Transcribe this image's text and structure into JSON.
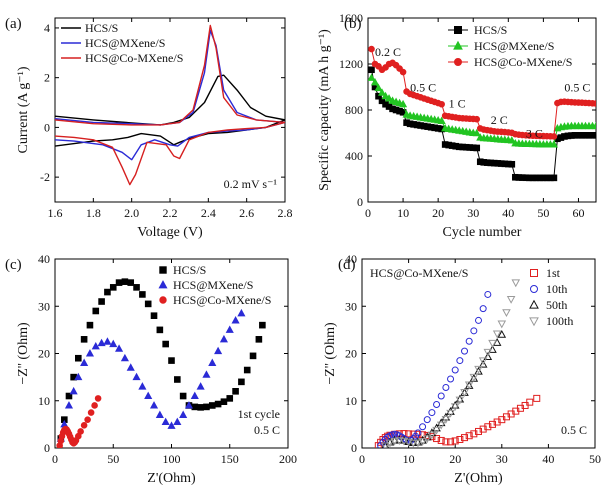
{
  "chart_data": [
    {
      "panel": "(a)",
      "type": "line",
      "xlabel": "Voltage (V)",
      "ylabel": "Current (A g⁻¹)",
      "xlim": [
        1.6,
        2.8
      ],
      "ylim": [
        -3,
        4.4
      ],
      "xticks": [
        "1.6",
        "1.8",
        "2.0",
        "2.2",
        "2.4",
        "2.6",
        "2.8"
      ],
      "yticks": [
        "-2",
        "0",
        "2",
        "4"
      ],
      "annotation": "0.2 mV s⁻¹",
      "legend_position": "top-left",
      "series": [
        {
          "name": "HCS/S",
          "color": "#000000",
          "x": [
            1.6,
            1.8,
            2.0,
            2.15,
            2.22,
            2.3,
            2.38,
            2.45,
            2.48,
            2.55,
            2.62,
            2.7,
            2.8,
            2.7,
            2.6,
            2.5,
            2.4,
            2.3,
            2.25,
            2.22,
            2.15,
            2.05,
            1.98,
            1.9,
            1.8,
            1.7,
            1.6
          ],
          "y": [
            0.45,
            0.3,
            0.18,
            0.1,
            0.2,
            0.4,
            1.0,
            2.05,
            2.1,
            1.5,
            0.8,
            0.45,
            0.3,
            0.0,
            -0.1,
            -0.2,
            -0.25,
            -0.45,
            -0.6,
            -0.7,
            -0.35,
            -0.25,
            -0.4,
            -0.5,
            -0.55,
            -0.65,
            -0.75
          ]
        },
        {
          "name": "HCS@MXene/S",
          "color": "#2b2bd6",
          "x": [
            1.6,
            1.8,
            2.0,
            2.15,
            2.25,
            2.32,
            2.38,
            2.41,
            2.44,
            2.48,
            2.55,
            2.65,
            2.8,
            2.7,
            2.6,
            2.5,
            2.4,
            2.3,
            2.24,
            2.2,
            2.12,
            2.05,
            2.0,
            1.95,
            1.85,
            1.7,
            1.6
          ],
          "y": [
            0.35,
            0.2,
            0.15,
            0.1,
            0.2,
            0.6,
            2.2,
            3.9,
            3.3,
            1.5,
            0.6,
            0.3,
            0.2,
            0.0,
            -0.1,
            -0.15,
            -0.2,
            -0.4,
            -0.75,
            -0.7,
            -0.5,
            -0.7,
            -1.3,
            -1.0,
            -0.7,
            -0.55,
            -0.5
          ]
        },
        {
          "name": "HCS@Co-MXene/S",
          "color": "#d62020",
          "x": [
            1.6,
            1.8,
            2.0,
            2.15,
            2.25,
            2.32,
            2.38,
            2.41,
            2.44,
            2.48,
            2.55,
            2.65,
            2.8,
            2.7,
            2.6,
            2.5,
            2.4,
            2.3,
            2.25,
            2.22,
            2.18,
            2.08,
            2.02,
            1.99,
            1.95,
            1.9,
            1.8,
            1.7,
            1.6
          ],
          "y": [
            0.3,
            0.15,
            0.1,
            0.1,
            0.2,
            0.7,
            2.5,
            4.1,
            3.2,
            1.2,
            0.5,
            0.3,
            0.2,
            0.0,
            -0.05,
            -0.1,
            -0.2,
            -0.5,
            -1.25,
            -1.15,
            -0.7,
            -0.6,
            -1.9,
            -2.3,
            -1.6,
            -0.8,
            -0.5,
            -0.4,
            -0.35
          ]
        }
      ]
    },
    {
      "panel": "(b)",
      "type": "scatter",
      "xlabel": "Cycle number",
      "ylabel": "Specific capacity (mA h g⁻¹)",
      "xlim": [
        0,
        65
      ],
      "ylim": [
        0,
        1600
      ],
      "xticks": [
        "0",
        "10",
        "20",
        "30",
        "40",
        "50",
        "60"
      ],
      "yticks": [
        "0",
        "400",
        "800",
        "1200",
        "1600"
      ],
      "legend_position": "top-right",
      "rate_labels": [
        {
          "text": "0.2 C",
          "x": 2,
          "y": 1270
        },
        {
          "text": "0.5 C",
          "x": 12,
          "y": 960
        },
        {
          "text": "1 C",
          "x": 23,
          "y": 820
        },
        {
          "text": "2 C",
          "x": 35,
          "y": 680
        },
        {
          "text": "3 C",
          "x": 45,
          "y": 560
        },
        {
          "text": "0.5 C",
          "x": 56,
          "y": 960
        }
      ],
      "series": [
        {
          "name": "HCS/S",
          "color": "#000000",
          "marker": "square",
          "y": [
            1150,
            1000,
            920,
            880,
            850,
            830,
            810,
            800,
            790,
            780,
            690,
            680,
            675,
            670,
            665,
            660,
            655,
            650,
            645,
            640,
            635,
            500,
            495,
            490,
            485,
            480,
            478,
            476,
            474,
            472,
            470,
            350,
            345,
            342,
            340,
            338,
            336,
            334,
            332,
            330,
            328,
            215,
            213,
            212,
            211,
            210,
            210,
            210,
            210,
            210,
            210,
            210,
            210,
            550,
            560,
            570,
            575,
            578,
            580,
            580,
            580,
            580,
            580,
            580,
            580
          ]
        },
        {
          "name": "HCS@MXene/S",
          "color": "#22c422",
          "marker": "triangle",
          "y": [
            1080,
            1040,
            990,
            950,
            920,
            900,
            880,
            870,
            860,
            850,
            760,
            750,
            745,
            740,
            735,
            730,
            725,
            720,
            715,
            710,
            705,
            640,
            635,
            630,
            625,
            620,
            615,
            610,
            605,
            600,
            598,
            560,
            555,
            552,
            550,
            548,
            545,
            542,
            540,
            538,
            535,
            510,
            508,
            506,
            505,
            504,
            503,
            502,
            501,
            500,
            500,
            500,
            500,
            640,
            650,
            655,
            658,
            660,
            660,
            660,
            660,
            660,
            660,
            660,
            660
          ]
        },
        {
          "name": "HCS@Co-MXene/S",
          "color": "#e02020",
          "marker": "circle",
          "y": [
            1330,
            1200,
            1180,
            1150,
            1170,
            1200,
            1210,
            1190,
            1160,
            1130,
            960,
            940,
            930,
            920,
            910,
            900,
            890,
            880,
            870,
            860,
            850,
            750,
            745,
            740,
            735,
            730,
            728,
            726,
            724,
            722,
            720,
            640,
            630,
            625,
            620,
            615,
            612,
            610,
            608,
            605,
            602,
            590,
            585,
            582,
            580,
            578,
            576,
            575,
            574,
            573,
            572,
            571,
            570,
            860,
            870,
            872,
            870,
            868,
            866,
            865,
            864,
            862,
            860,
            858,
            856
          ]
        }
      ]
    },
    {
      "panel": "(c)",
      "type": "scatter",
      "xlabel": "Z'(Ohm)",
      "ylabel": "−Z'' (Ohm)",
      "xlim": [
        0,
        200
      ],
      "ylim": [
        0,
        40
      ],
      "xticks": [
        "0",
        "50",
        "100",
        "150",
        "200"
      ],
      "yticks": [
        "0",
        "10",
        "20",
        "30",
        "40"
      ],
      "annotation_lines": [
        "1st cycle",
        "0.5 C"
      ],
      "legend_position": "top-right",
      "series": [
        {
          "name": "HCS/S",
          "color": "#000000",
          "marker": "square",
          "x": [
            5,
            8,
            12,
            16,
            20,
            25,
            30,
            35,
            40,
            45,
            50,
            55,
            60,
            65,
            70,
            75,
            80,
            85,
            90,
            95,
            100,
            105,
            110,
            115,
            120,
            125,
            130,
            135,
            140,
            145,
            150,
            155,
            160,
            165,
            170,
            175,
            178
          ],
          "y": [
            2,
            6,
            11,
            15,
            19,
            23,
            26,
            29,
            31,
            33,
            34,
            35,
            35.2,
            35,
            34,
            32.5,
            30.5,
            28,
            25,
            22,
            18.5,
            14.5,
            11,
            9,
            8.7,
            8.6,
            8.7,
            9,
            9.3,
            9.8,
            10.5,
            12,
            14,
            16.5,
            19.5,
            23,
            26
          ]
        },
        {
          "name": "HCS@MXene/S",
          "color": "#2b2bd6",
          "marker": "triangle",
          "x": [
            5,
            8,
            12,
            16,
            20,
            25,
            30,
            35,
            40,
            45,
            50,
            55,
            60,
            65,
            70,
            75,
            80,
            85,
            90,
            95,
            100,
            105,
            110,
            115,
            120,
            125,
            130,
            135,
            140,
            145,
            150,
            155,
            160
          ],
          "y": [
            2,
            5,
            9,
            12,
            15,
            18,
            20,
            21.5,
            22.2,
            22.5,
            22,
            21,
            19,
            17,
            15,
            13,
            11,
            9,
            7,
            5.5,
            4.7,
            5.5,
            7,
            9,
            11,
            13,
            15.5,
            18,
            20.5,
            23,
            25,
            27,
            28.5
          ]
        },
        {
          "name": "HCS@Co-MXene/S",
          "color": "#e02020",
          "marker": "circle",
          "x": [
            4,
            5,
            6,
            7,
            8,
            9,
            10,
            11,
            12,
            13,
            14,
            15,
            16,
            17,
            18,
            20,
            22,
            25,
            28,
            31,
            34,
            37
          ],
          "y": [
            0.5,
            1.5,
            2.5,
            3.3,
            3.8,
            4,
            3.9,
            3.5,
            3,
            2.4,
            1.8,
            1.2,
            1,
            1.2,
            1.6,
            2.5,
            3.5,
            4.8,
            6,
            7.5,
            9,
            10.5
          ]
        }
      ]
    },
    {
      "panel": "(d)",
      "type": "scatter",
      "xlabel": "Z'(Ohm)",
      "ylabel": "−Z'' (Ohm)",
      "xlim": [
        0,
        50
      ],
      "ylim": [
        0,
        40
      ],
      "xticks": [
        "0",
        "10",
        "20",
        "30",
        "40",
        "50"
      ],
      "yticks": [
        "0",
        "10",
        "20",
        "30",
        "40"
      ],
      "title": "HCS@Co-MXene/S",
      "annotation": "0.5 C",
      "legend_position": "top-right",
      "series": [
        {
          "name": "1st",
          "color": "#e02020",
          "marker": "open-square",
          "x": [
            3.5,
            4,
            4.5,
            5,
            5.5,
            6,
            7,
            8,
            9,
            10,
            11,
            12,
            13,
            14,
            15,
            16,
            17,
            18,
            19,
            20,
            21,
            22,
            23,
            24,
            25,
            26,
            27,
            28,
            29,
            30,
            31,
            32,
            33,
            34,
            35,
            36,
            37.5
          ],
          "y": [
            0.5,
            1.2,
            1.8,
            2.2,
            2.5,
            2.7,
            2.9,
            3,
            3.05,
            3,
            2.95,
            2.9,
            2.8,
            2.65,
            2.4,
            2,
            1.6,
            1.3,
            1.3,
            1.5,
            1.8,
            2.2,
            2.6,
            3,
            3.5,
            4,
            4.5,
            5,
            5.5,
            6,
            6.6,
            7.2,
            7.8,
            8.4,
            9,
            9.7,
            10.5
          ]
        },
        {
          "name": "10th",
          "color": "#2b2bd6",
          "marker": "open-circle",
          "x": [
            4,
            4.5,
            5,
            5.5,
            6,
            6.5,
            7,
            7.5,
            8,
            8.5,
            9,
            9.5,
            10,
            10.5,
            11,
            11.5,
            12,
            13,
            14,
            15,
            16,
            17,
            18,
            19,
            20,
            21,
            22,
            23,
            24,
            25,
            26,
            27
          ],
          "y": [
            0.5,
            1.2,
            1.8,
            2.3,
            2.6,
            2.8,
            2.9,
            2.8,
            2.6,
            2.3,
            2,
            1.7,
            1.5,
            1.6,
            2,
            2.5,
            3.2,
            4.5,
            6,
            7.5,
            9.2,
            11,
            12.8,
            14.6,
            16.5,
            18.5,
            20.5,
            22.6,
            24.8,
            27,
            29.5,
            32.5
          ]
        },
        {
          "name": "50th",
          "color": "#111111",
          "marker": "open-triangle",
          "x": [
            5,
            6,
            7,
            8,
            9,
            10,
            11,
            12,
            13,
            14,
            15,
            16,
            17,
            18,
            19,
            20,
            21,
            22,
            23,
            24,
            25,
            26,
            27,
            28,
            29,
            30
          ],
          "y": [
            0.5,
            1.2,
            1.6,
            1.7,
            1.6,
            1.3,
            1.1,
            1.2,
            1.6,
            2.3,
            3.2,
            4.2,
            5.3,
            6.5,
            7.7,
            9,
            10.3,
            11.7,
            13.2,
            14.7,
            16.2,
            17.7,
            19.3,
            20.8,
            22.3,
            24
          ]
        },
        {
          "name": "100th",
          "color": "#9a9a9a",
          "marker": "open-inv-triangle",
          "x": [
            5,
            6,
            7,
            8,
            9,
            10,
            11,
            12,
            13,
            14,
            15,
            16,
            17,
            18,
            19,
            20,
            21,
            22,
            23,
            24,
            25,
            26,
            27,
            28,
            29,
            30,
            31,
            32,
            33
          ],
          "y": [
            0.5,
            1.1,
            1.5,
            1.6,
            1.5,
            1.3,
            1.1,
            1.1,
            1.4,
            2,
            2.8,
            3.8,
            4.9,
            6.1,
            7.4,
            8.8,
            10.2,
            11.8,
            13.4,
            15,
            16.7,
            18.5,
            20.3,
            22.2,
            24.2,
            26.3,
            28.7,
            31.5,
            35
          ]
        }
      ]
    }
  ]
}
